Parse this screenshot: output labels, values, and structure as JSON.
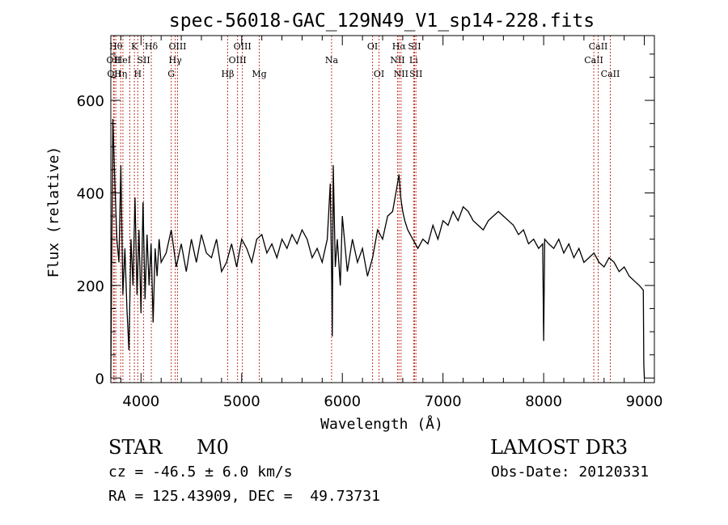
{
  "chart_data": {
    "type": "line",
    "title": "spec-56018-GAC_129N49_V1_sp14-228.fits",
    "xlabel": "Wavelength (Å)",
    "ylabel": "Flux (relative)",
    "xlim": [
      3700,
      9100
    ],
    "ylim": [
      -10,
      740
    ],
    "x_ticks": [
      4000,
      5000,
      6000,
      7000,
      8000,
      9000
    ],
    "y_ticks": [
      0,
      200,
      400,
      600
    ],
    "series": [
      {
        "name": "flux",
        "x": [
          3700,
          3720,
          3740,
          3760,
          3780,
          3800,
          3820,
          3840,
          3860,
          3880,
          3900,
          3920,
          3940,
          3960,
          3980,
          4000,
          4020,
          4040,
          4060,
          4080,
          4100,
          4120,
          4140,
          4160,
          4180,
          4200,
          4250,
          4300,
          4350,
          4400,
          4450,
          4500,
          4550,
          4600,
          4650,
          4700,
          4750,
          4800,
          4850,
          4900,
          4950,
          5000,
          5050,
          5100,
          5150,
          5200,
          5250,
          5300,
          5350,
          5400,
          5450,
          5500,
          5550,
          5600,
          5650,
          5700,
          5750,
          5800,
          5850,
          5880,
          5895,
          5900,
          5910,
          5930,
          5950,
          5980,
          6000,
          6050,
          6100,
          6150,
          6200,
          6250,
          6300,
          6350,
          6400,
          6450,
          6500,
          6540,
          6563,
          6580,
          6600,
          6620,
          6650,
          6700,
          6750,
          6800,
          6850,
          6900,
          6950,
          7000,
          7050,
          7100,
          7150,
          7200,
          7250,
          7300,
          7350,
          7400,
          7450,
          7500,
          7550,
          7600,
          7650,
          7700,
          7750,
          7800,
          7850,
          7900,
          7950,
          7990,
          8000,
          8010,
          8050,
          8100,
          8150,
          8200,
          8250,
          8300,
          8350,
          8400,
          8450,
          8500,
          8550,
          8600,
          8650,
          8700,
          8750,
          8800,
          8850,
          8900,
          8950,
          8990,
          8995,
          9000
        ],
        "y": [
          0,
          560,
          420,
          300,
          250,
          460,
          180,
          280,
          150,
          60,
          300,
          200,
          390,
          180,
          320,
          140,
          380,
          170,
          310,
          200,
          290,
          120,
          280,
          220,
          300,
          250,
          270,
          320,
          240,
          290,
          230,
          300,
          250,
          310,
          270,
          260,
          300,
          230,
          250,
          290,
          240,
          300,
          280,
          250,
          300,
          310,
          270,
          290,
          260,
          300,
          280,
          310,
          290,
          320,
          300,
          260,
          280,
          250,
          300,
          420,
          200,
          90,
          460,
          240,
          300,
          200,
          350,
          230,
          300,
          250,
          280,
          220,
          260,
          320,
          300,
          350,
          360,
          410,
          440,
          390,
          360,
          340,
          320,
          300,
          280,
          300,
          290,
          330,
          300,
          340,
          330,
          360,
          340,
          370,
          360,
          340,
          330,
          320,
          340,
          350,
          360,
          350,
          340,
          330,
          310,
          320,
          290,
          300,
          280,
          290,
          80,
          300,
          290,
          280,
          300,
          270,
          290,
          260,
          280,
          250,
          260,
          270,
          250,
          240,
          260,
          250,
          230,
          240,
          220,
          210,
          200,
          190,
          30,
          0
        ]
      }
    ],
    "lines": [
      {
        "wl": 3727,
        "label": "OII",
        "row": 1
      },
      {
        "wl": 3734,
        "label": "OII",
        "row": 2
      },
      {
        "wl": 3750,
        "label": "Hθ",
        "row": 0
      },
      {
        "wl": 3798,
        "label": "Hη",
        "row": 2
      },
      {
        "wl": 3820,
        "label": "HeI",
        "row": 1
      },
      {
        "wl": 3889,
        "label": "",
        "row": 0
      },
      {
        "wl": 3934,
        "label": "K",
        "row": 0
      },
      {
        "wl": 3968,
        "label": "H",
        "row": 2
      },
      {
        "wl": 4026,
        "label": "SII",
        "row": 1
      },
      {
        "wl": 4102,
        "label": "Hδ",
        "row": 0
      },
      {
        "wl": 4300,
        "label": "G",
        "row": 2
      },
      {
        "wl": 4340,
        "label": "Hγ",
        "row": 1
      },
      {
        "wl": 4363,
        "label": "OIII",
        "row": 0
      },
      {
        "wl": 4861,
        "label": "Hβ",
        "row": 2
      },
      {
        "wl": 4959,
        "label": "OIII",
        "row": 1
      },
      {
        "wl": 5007,
        "label": "OIII",
        "row": 0
      },
      {
        "wl": 5175,
        "label": "Mg",
        "row": 2
      },
      {
        "wl": 5893,
        "label": "Na",
        "row": 1
      },
      {
        "wl": 6300,
        "label": "OI",
        "row": 0
      },
      {
        "wl": 6364,
        "label": "OI",
        "row": 2
      },
      {
        "wl": 6548,
        "label": "NII",
        "row": 1
      },
      {
        "wl": 6563,
        "label": "Hα",
        "row": 0
      },
      {
        "wl": 6583,
        "label": "NII",
        "row": 2
      },
      {
        "wl": 6708,
        "label": "Li",
        "row": 1
      },
      {
        "wl": 6717,
        "label": "SII",
        "row": 0
      },
      {
        "wl": 6731,
        "label": "SII",
        "row": 2
      },
      {
        "wl": 8498,
        "label": "CaII",
        "row": 1
      },
      {
        "wl": 8542,
        "label": "CaII",
        "row": 0
      },
      {
        "wl": 8662,
        "label": "CaII",
        "row": 2
      }
    ]
  },
  "info": {
    "object_class": "STAR",
    "subclass": "M0",
    "survey": "LAMOST DR3",
    "redshift": "cz = -46.5 ± 6.0 km/s",
    "obs_date": "Obs-Date: 20120331",
    "coords": "RA = 125.43909, DEC =  49.73731"
  }
}
